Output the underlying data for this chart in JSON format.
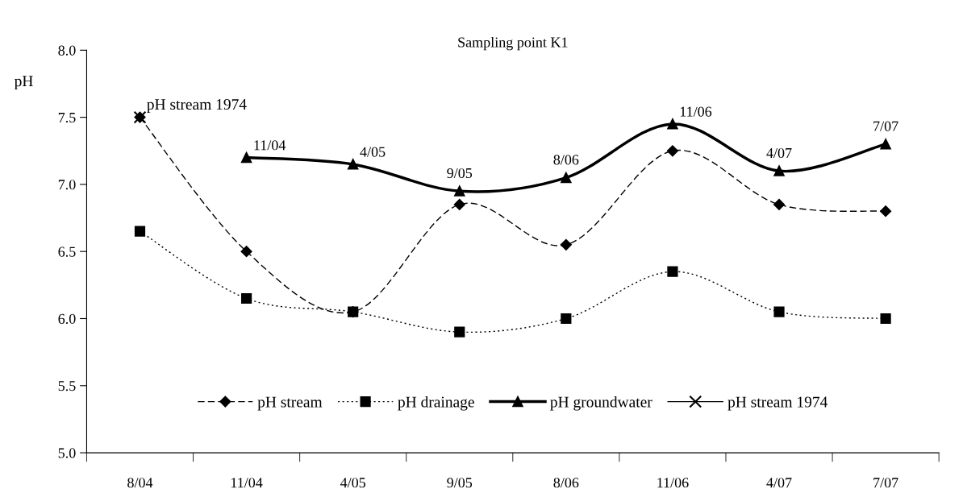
{
  "chart_data": {
    "type": "line",
    "title": "Sampling point K1",
    "ylabel": "pH",
    "categories": [
      "8/04",
      "11/04",
      "4/05",
      "9/05",
      "8/06",
      "11/06",
      "4/07",
      "7/07"
    ],
    "series": [
      {
        "name": "pH stream",
        "color": "#000000",
        "line_style": "dashed",
        "marker": "diamond",
        "values": [
          7.5,
          6.5,
          6.05,
          6.85,
          6.55,
          7.25,
          6.85,
          6.8
        ]
      },
      {
        "name": "pH drainage",
        "color": "#000000",
        "line_style": "dotted",
        "marker": "square",
        "values": [
          6.65,
          6.15,
          6.05,
          5.9,
          6.0,
          6.35,
          6.05,
          6.0
        ]
      },
      {
        "name": "pH groundwater",
        "color": "#000000",
        "line_style": "solid",
        "marker": "triangle",
        "values": [
          null,
          7.2,
          7.15,
          6.95,
          7.05,
          7.45,
          7.1,
          7.3
        ]
      },
      {
        "name": "pH stream 1974",
        "color": "#000000",
        "line_style": "solid",
        "marker": "cross",
        "values": [
          7.5,
          null,
          null,
          null,
          null,
          null,
          null,
          null
        ]
      }
    ],
    "ylim": [
      5.0,
      8.0
    ],
    "yticks": [
      {
        "value": 5,
        "label": "5.0"
      },
      5.5,
      {
        "value": 6,
        "label": "6.0"
      },
      6.5,
      {
        "value": 7,
        "label": "7.0"
      },
      7.5,
      {
        "value": 8,
        "label": "8.0"
      }
    ],
    "grid": false,
    "legend": "bottom",
    "annotations": [
      {
        "text": "pH stream 1974",
        "x": "8/04",
        "y": 7.5
      },
      {
        "text": "11/04",
        "x": "11/04",
        "y": 7.2
      },
      {
        "text": "4/05",
        "x": "4/05",
        "y": 7.15
      },
      {
        "text": "9/05",
        "x": "9/05",
        "y": 6.95
      },
      {
        "text": "8/06",
        "x": "8/06",
        "y": 7.05
      },
      {
        "text": "11/06",
        "x": "11/06",
        "y": 7.45
      },
      {
        "text": "4/07",
        "x": "4/07",
        "y": 7.1
      },
      {
        "text": "7/07",
        "x": "7/07",
        "y": 7.3
      }
    ]
  }
}
